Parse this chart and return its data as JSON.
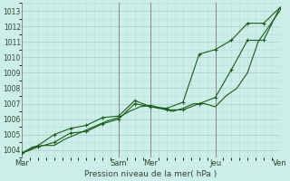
{
  "xlabel": "Pression niveau de la mer( hPa )",
  "bg_color": "#cceee8",
  "grid_minor_color": "#b8ddd8",
  "grid_major_color": "#a8ccc8",
  "vline_color": "#888888",
  "line_color": "#1a5c1a",
  "ylim": [
    1003.5,
    1013.5
  ],
  "xlim": [
    0,
    8
  ],
  "day_labels": [
    "Mar",
    "Sam",
    "Mer",
    "Jeu",
    "Ven"
  ],
  "day_positions": [
    0,
    3,
    4,
    6,
    8
  ],
  "line1_x": [
    0,
    0.33,
    0.67,
    1.0,
    1.33,
    1.67,
    2.0,
    2.33,
    2.67,
    3.0,
    3.33,
    3.67,
    4.0,
    4.33,
    4.67,
    5.0,
    5.33,
    5.67,
    6.0,
    6.33,
    6.67,
    7.0,
    7.33,
    7.67,
    8.0
  ],
  "line1_y": [
    1003.8,
    1004.2,
    1004.3,
    1004.3,
    1004.7,
    1005.0,
    1005.3,
    1005.6,
    1005.9,
    1006.1,
    1006.5,
    1006.8,
    1006.9,
    1006.7,
    1006.5,
    1006.7,
    1007.0,
    1007.0,
    1006.8,
    1007.5,
    1008.0,
    1009.0,
    1011.0,
    1012.0,
    1013.0
  ],
  "line2_x": [
    0,
    0.5,
    1.0,
    1.5,
    2.0,
    2.5,
    3.0,
    3.5,
    4.0,
    4.5,
    5.0,
    5.5,
    6.0,
    6.5,
    7.0,
    7.5,
    8.0
  ],
  "line2_y": [
    1003.8,
    1004.2,
    1004.5,
    1005.1,
    1005.2,
    1005.7,
    1006.0,
    1007.0,
    1006.8,
    1006.6,
    1006.6,
    1007.0,
    1007.4,
    1009.2,
    1011.1,
    1011.1,
    1013.2
  ],
  "line3_x": [
    0,
    0.5,
    1.0,
    1.5,
    2.0,
    2.5,
    3.0,
    3.5,
    4.0,
    4.5,
    5.0,
    5.5,
    6.0,
    6.5,
    7.0,
    7.5,
    8.0
  ],
  "line3_y": [
    1003.8,
    1004.3,
    1005.0,
    1005.4,
    1005.6,
    1006.1,
    1006.2,
    1007.2,
    1006.8,
    1006.7,
    1007.1,
    1010.2,
    1010.5,
    1011.1,
    1012.2,
    1012.2,
    1013.2
  ],
  "yticks": [
    1004,
    1005,
    1006,
    1007,
    1008,
    1009,
    1010,
    1011,
    1012,
    1013
  ]
}
